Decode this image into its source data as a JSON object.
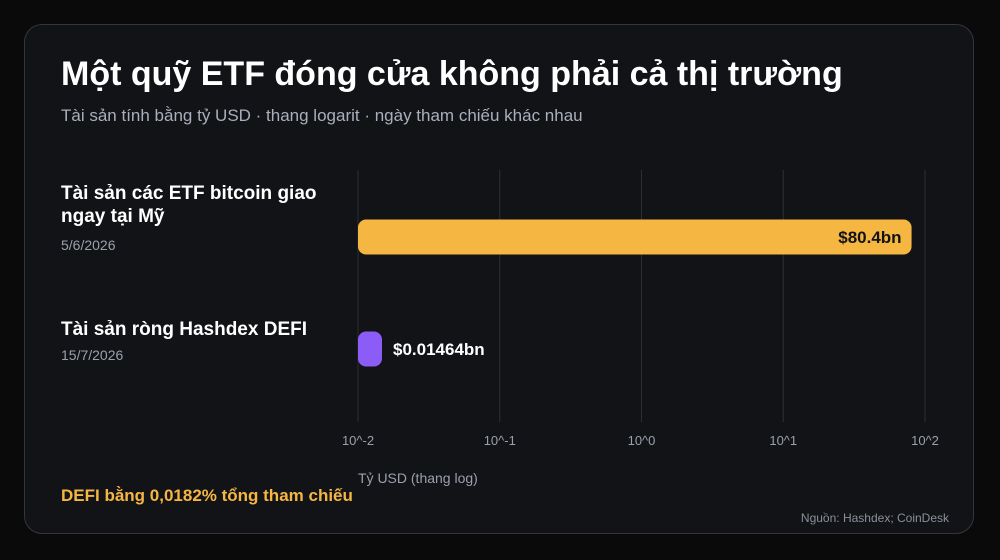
{
  "header": {
    "title": "Một quỹ ETF đóng cửa không phải cả thị trường",
    "subtitle": "Tài sản tính bằng tỷ USD · thang logarit · ngày tham chiếu khác nhau"
  },
  "footer": {
    "note": "DEFI bằng 0,0182% tổng tham chiếu",
    "source": "Nguồn: Hashdex; CoinDesk"
  },
  "colors": {
    "accent": "#f5b642",
    "secondary": "#8b5cf6",
    "background": "#121317"
  },
  "chart_data": {
    "type": "bar",
    "orientation": "horizontal",
    "scale": "log",
    "xlim": [
      0.01,
      100
    ],
    "xlabel": "Tỷ USD (thang log)",
    "tick_values": [
      0.01,
      0.1,
      1,
      10,
      100
    ],
    "tick_labels": [
      "10^-2",
      "10^-1",
      "10^0",
      "10^1",
      "10^2"
    ],
    "grid": true,
    "categories": [
      "Tài sản các ETF bitcoin giao ngay tại Mỹ",
      "Tài sản ròng Hashdex DEFI"
    ],
    "dates": [
      "5/6/2026",
      "15/7/2026"
    ],
    "values": [
      80.4,
      0.01464
    ],
    "value_labels": [
      "$80.4bn",
      "$0.01464bn"
    ],
    "bar_colors": [
      "#f5b642",
      "#8b5cf6"
    ]
  }
}
